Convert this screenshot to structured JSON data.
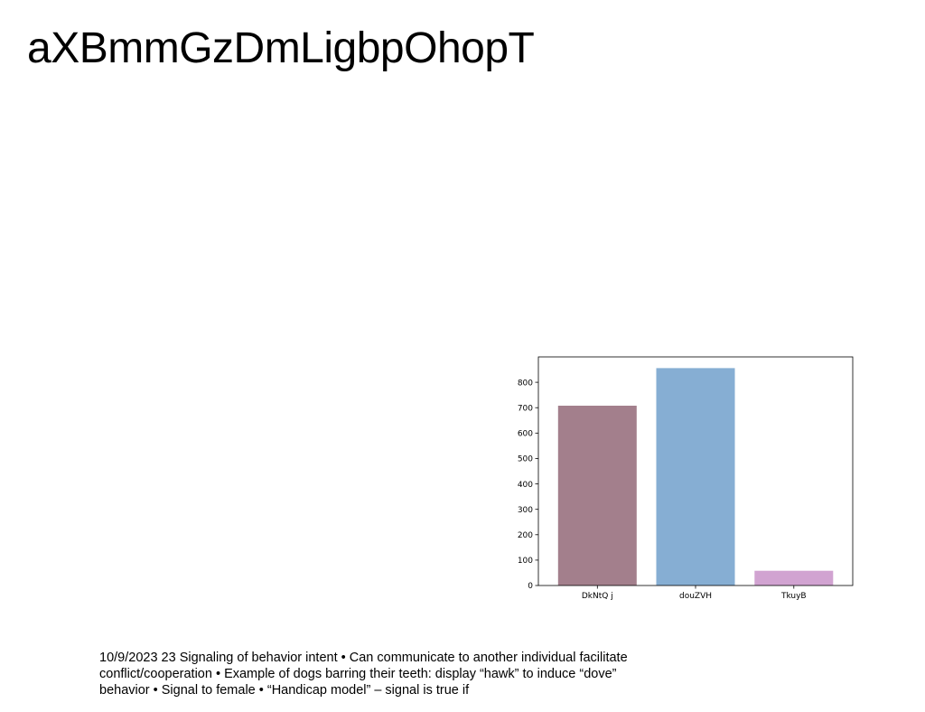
{
  "slide": {
    "title": "aXBmmGzDmLigbpOhopT",
    "body_text": "10/9/2023 23 Signaling of behavior intent • Can communicate to another individual facilitate conflict/cooperation • Example of dogs barring their teeth: display “hawk” to induce “dove” behavior • Signal to female • “Handicap model” – signal is true if"
  },
  "chart_data": {
    "type": "bar",
    "title": "",
    "xlabel": "",
    "ylabel": "",
    "categories": [
      "DkNtQ j",
      "douZVH",
      "TkuyB"
    ],
    "values": [
      708,
      856,
      58
    ],
    "colors": [
      "#a37f8c",
      "#86aed3",
      "#d1a3d1"
    ],
    "ylim": [
      0,
      900
    ],
    "yticks": [
      0,
      100,
      200,
      300,
      400,
      500,
      600,
      700,
      800
    ],
    "grid": false,
    "legend": "none"
  }
}
